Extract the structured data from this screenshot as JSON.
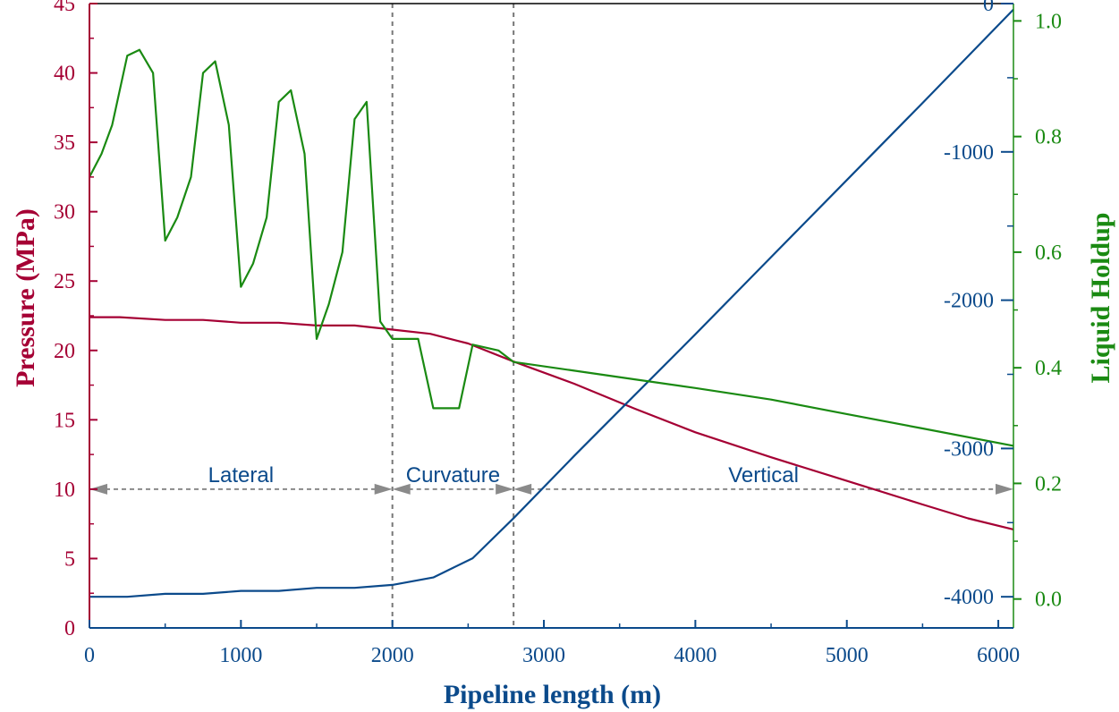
{
  "colors": {
    "pressure": "#a50034",
    "depth": "#0b4a8b",
    "holdup": "#1a8a12",
    "divider": "#777777",
    "arrow": "#8a8a8a"
  },
  "chart_data": {
    "type": "line",
    "xlabel": "Pipeline length (m)",
    "xlim": [
      0,
      6100
    ],
    "xticks": [
      0,
      1000,
      2000,
      3000,
      4000,
      5000,
      6000
    ],
    "axes": {
      "left": {
        "label": "Pressure (MPa)",
        "lim": [
          0,
          45
        ],
        "ticks": [
          0,
          5,
          10,
          15,
          20,
          25,
          30,
          35,
          40,
          45
        ]
      },
      "right_inner": {
        "label": "",
        "lim": [
          -4210,
          0
        ],
        "ticks": [
          0,
          -1000,
          -2000,
          -3000,
          -4000
        ]
      },
      "right_outer": {
        "label": "Liquid Holdup",
        "lim": [
          -0.05,
          1.03
        ],
        "ticks": [
          "0.0",
          "0.2",
          "0.4",
          "0.6",
          "0.8",
          "1.0"
        ]
      }
    },
    "series": [
      {
        "axis": "left",
        "color_key": "pressure",
        "x": [
          0,
          200,
          500,
          750,
          1000,
          1250,
          1500,
          1750,
          2000,
          2250,
          2500,
          2800,
          3200,
          3600,
          4000,
          4500,
          5000,
          5500,
          5800,
          6100
        ],
        "y": [
          22.4,
          22.4,
          22.2,
          22.2,
          22.0,
          22.0,
          21.8,
          21.8,
          21.5,
          21.2,
          20.5,
          19.2,
          17.6,
          15.8,
          14.1,
          12.3,
          10.6,
          8.9,
          7.9,
          7.1
        ]
      },
      {
        "axis": "right_inner",
        "color_key": "depth",
        "x": [
          0,
          250,
          500,
          750,
          1000,
          1250,
          1500,
          1750,
          2000,
          2270,
          2530,
          2800,
          3200,
          3600,
          4000,
          4500,
          5000,
          5500,
          6100
        ],
        "y": [
          -4000,
          -4000,
          -3980,
          -3980,
          -3960,
          -3960,
          -3940,
          -3940,
          -3920,
          -3870,
          -3740,
          -3470,
          -3050,
          -2640,
          -2230,
          -1710,
          -1190,
          -670,
          -40
        ]
      },
      {
        "axis": "right_outer",
        "color_key": "holdup",
        "x": [
          0,
          80,
          150,
          250,
          330,
          420,
          500,
          580,
          670,
          750,
          830,
          920,
          1000,
          1080,
          1170,
          1250,
          1330,
          1420,
          1500,
          1580,
          1670,
          1750,
          1830,
          1920,
          2000,
          2170,
          2270,
          2440,
          2530,
          2700,
          2800,
          3200,
          3600,
          4000,
          4500,
          5000,
          5500,
          6100
        ],
        "y": [
          0.73,
          0.77,
          0.82,
          0.94,
          0.95,
          0.91,
          0.62,
          0.66,
          0.73,
          0.91,
          0.93,
          0.82,
          0.54,
          0.58,
          0.66,
          0.86,
          0.88,
          0.77,
          0.45,
          0.51,
          0.6,
          0.83,
          0.86,
          0.48,
          0.45,
          0.45,
          0.33,
          0.33,
          0.44,
          0.43,
          0.41,
          0.395,
          0.38,
          0.365,
          0.345,
          0.32,
          0.295,
          0.265
        ]
      }
    ],
    "dividers": [
      2000,
      2800
    ],
    "annotation_y": 10,
    "sections": [
      {
        "label": "Lateral",
        "from": 0,
        "to": 2000
      },
      {
        "label": "Curvature",
        "from": 2000,
        "to": 2800
      },
      {
        "label": "Vertical",
        "from": 2800,
        "to": 6100
      }
    ]
  }
}
